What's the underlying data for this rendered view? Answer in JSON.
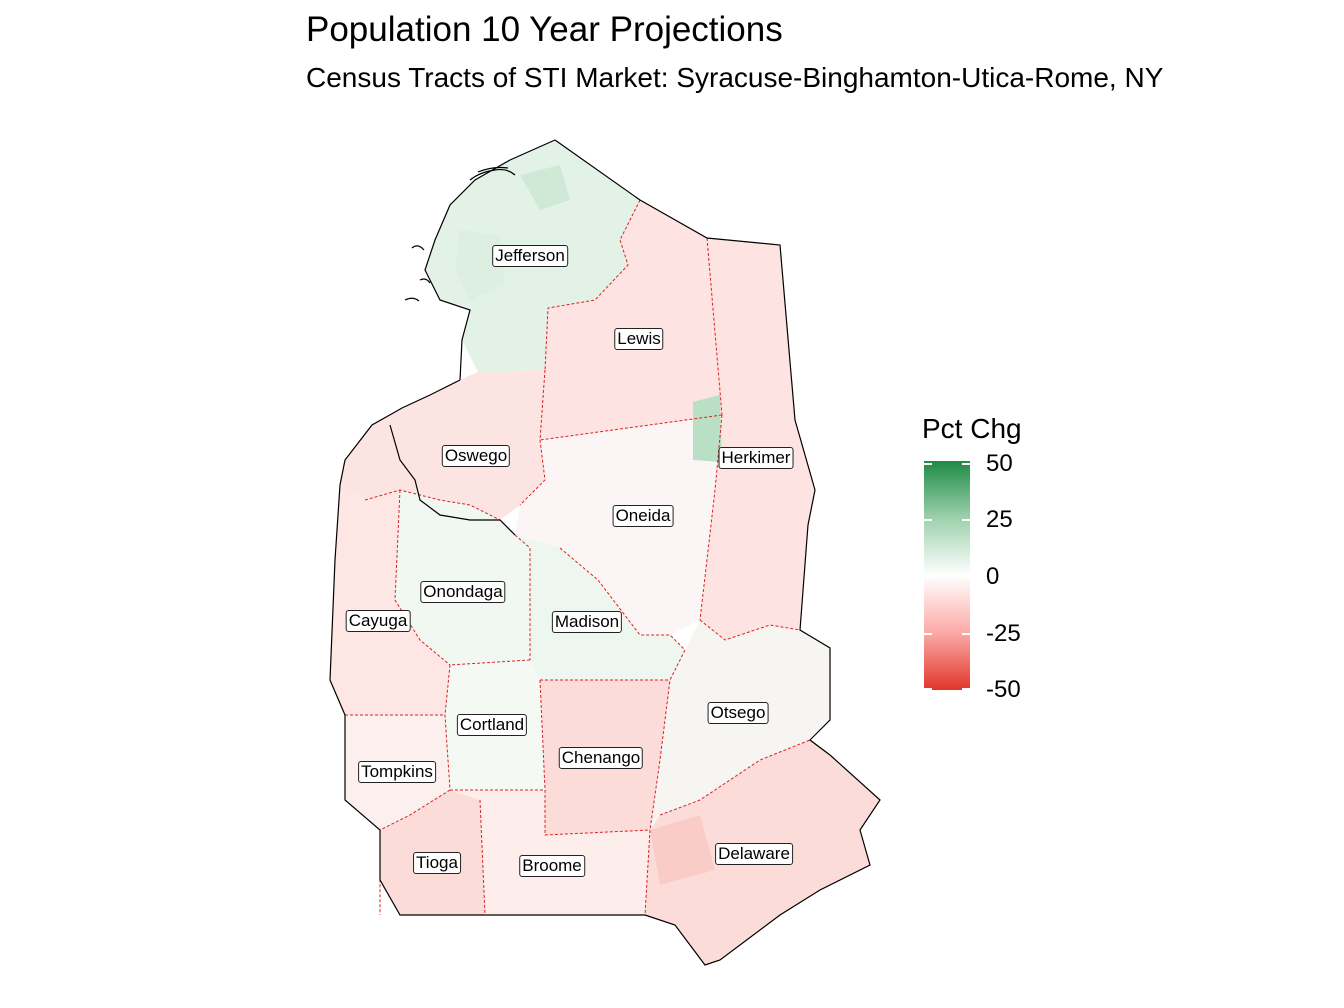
{
  "title": "Population 10 Year Projections",
  "subtitle": "Census Tracts of STI Market: Syracuse-Binghamton-Utica-Rome, NY",
  "legend": {
    "title": "Pct Chg",
    "ticks": [
      "50",
      "25",
      "0",
      "-25",
      "-50"
    ],
    "range": [
      -50,
      50
    ],
    "colors": {
      "high": "#1e8b45",
      "mid": "#ffffff",
      "low": "#e0362c"
    }
  },
  "counties": [
    {
      "name": "Jefferson",
      "fill": "#e3f2e6"
    },
    {
      "name": "Lewis",
      "fill": "#fde3e1"
    },
    {
      "name": "Herkimer",
      "fill": "#fde3e1"
    },
    {
      "name": "Oswego",
      "fill": "#fce4e2"
    },
    {
      "name": "Oneida",
      "fill": "#fbf6f5"
    },
    {
      "name": "Onondaga",
      "fill": "#f1f8f2"
    },
    {
      "name": "Cayuga",
      "fill": "#fde6e4"
    },
    {
      "name": "Madison",
      "fill": "#eef7ef"
    },
    {
      "name": "Cortland",
      "fill": "#f4f9f4"
    },
    {
      "name": "Tompkins",
      "fill": "#fcf0ef"
    },
    {
      "name": "Chenango",
      "fill": "#fcdcd9"
    },
    {
      "name": "Otsego",
      "fill": "#f6f5f2"
    },
    {
      "name": "Tioga",
      "fill": "#fcdcd9"
    },
    {
      "name": "Broome",
      "fill": "#fdeeec"
    },
    {
      "name": "Delaware",
      "fill": "#fcdcd9"
    }
  ]
}
